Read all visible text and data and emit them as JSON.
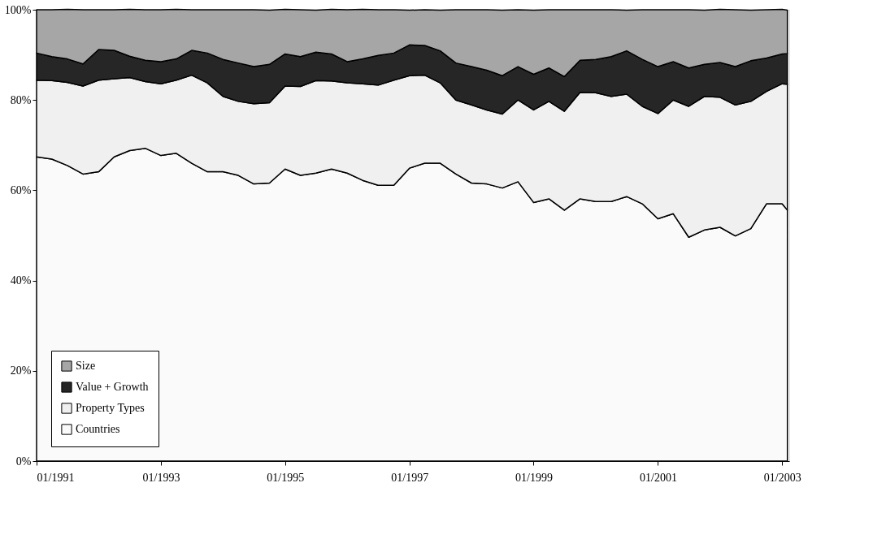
{
  "chart_data": {
    "type": "area",
    "stacked": true,
    "x": [
      "1991-01",
      "1991-04",
      "1991-07",
      "1991-10",
      "1992-01",
      "1992-04",
      "1992-07",
      "1992-10",
      "1993-01",
      "1993-04",
      "1993-07",
      "1993-10",
      "1994-01",
      "1994-04",
      "1994-07",
      "1994-10",
      "1995-01",
      "1995-04",
      "1995-07",
      "1995-10",
      "1996-01",
      "1996-04",
      "1996-07",
      "1996-10",
      "1997-01",
      "1997-04",
      "1997-07",
      "1997-10",
      "1998-01",
      "1998-04",
      "1998-07",
      "1998-10",
      "1999-01",
      "1999-04",
      "1999-07",
      "1999-10",
      "2000-01",
      "2000-04",
      "2000-07",
      "2000-10",
      "2001-01",
      "2001-04",
      "2001-07",
      "2001-10",
      "2002-01",
      "2002-04",
      "2002-07",
      "2002-10",
      "2003-01",
      "2003-02"
    ],
    "series": [
      {
        "name": "Countries",
        "color": "#fafafa",
        "values": [
          67.4,
          66.9,
          65.5,
          63.6,
          64.1,
          67.4,
          68.8,
          69.3,
          67.7,
          68.2,
          66.0,
          64.1,
          64.1,
          63.3,
          61.4,
          61.6,
          64.7,
          63.3,
          63.8,
          64.7,
          63.8,
          62.2,
          61.1,
          61.1,
          64.9,
          66.0,
          66.0,
          63.6,
          61.6,
          61.4,
          60.5,
          61.9,
          57.3,
          58.1,
          55.6,
          58.1,
          57.5,
          57.5,
          58.6,
          57.0,
          53.7,
          54.8,
          49.6,
          51.2,
          51.8,
          49.9,
          51.5,
          57.0,
          57.0,
          55.6
        ]
      },
      {
        "name": "Property Types",
        "color": "#f0f0f0",
        "values": [
          17.0,
          17.4,
          18.4,
          19.5,
          20.3,
          17.3,
          16.2,
          14.8,
          15.9,
          16.2,
          19.5,
          19.7,
          16.7,
          16.4,
          17.8,
          17.8,
          18.4,
          19.7,
          20.5,
          19.5,
          20.0,
          21.4,
          22.2,
          23.3,
          20.5,
          19.5,
          17.8,
          16.4,
          17.3,
          16.4,
          16.4,
          18.1,
          20.5,
          21.6,
          21.9,
          23.6,
          24.1,
          23.3,
          22.7,
          21.6,
          23.3,
          25.2,
          29.0,
          29.6,
          28.8,
          29.0,
          28.2,
          24.9,
          26.6,
          27.9
        ]
      },
      {
        "name": "Value + Growth",
        "color": "#262626",
        "values": [
          6.0,
          5.3,
          5.2,
          4.9,
          6.8,
          6.3,
          4.7,
          4.7,
          4.9,
          4.7,
          5.5,
          6.6,
          8.2,
          8.5,
          8.2,
          8.5,
          7.1,
          6.6,
          6.3,
          6.0,
          4.7,
          5.5,
          6.6,
          6.0,
          6.8,
          6.6,
          7.1,
          8.2,
          8.5,
          8.8,
          8.5,
          7.4,
          7.9,
          7.4,
          7.7,
          7.1,
          7.4,
          8.8,
          9.6,
          10.4,
          10.4,
          8.5,
          8.5,
          7.1,
          7.7,
          8.5,
          9.0,
          7.4,
          6.6,
          6.8
        ]
      },
      {
        "name": "Size",
        "color": "#a6a6a6",
        "values": [
          9.6,
          10.4,
          11.0,
          12.0,
          8.8,
          9.0,
          10.4,
          11.2,
          11.5,
          11.0,
          9.0,
          9.6,
          11.0,
          11.8,
          12.6,
          12.0,
          9.9,
          10.4,
          9.3,
          9.9,
          11.5,
          11.0,
          10.1,
          9.6,
          7.7,
          7.9,
          9.0,
          11.8,
          12.6,
          13.4,
          14.5,
          12.6,
          14.2,
          12.9,
          14.8,
          11.2,
          11.0,
          10.4,
          9.0,
          11.0,
          12.6,
          11.5,
          12.9,
          12.0,
          11.8,
          12.6,
          11.2,
          10.7,
          9.9,
          9.6
        ]
      }
    ],
    "xlim": [
      "1991-01",
      "2003-02-12"
    ],
    "xticks": [
      {
        "value": "1991-01",
        "label": "01/1991"
      },
      {
        "value": "1993-01",
        "label": "01/1993"
      },
      {
        "value": "1995-01",
        "label": "01/1995"
      },
      {
        "value": "1997-01",
        "label": "01/1997"
      },
      {
        "value": "1999-01",
        "label": "01/1999"
      },
      {
        "value": "2001-01",
        "label": "01/2001"
      },
      {
        "value": "2003-01",
        "label": "01/2003"
      }
    ],
    "ylim": [
      0,
      100
    ],
    "yticks": [
      {
        "value": 0,
        "label": "0%"
      },
      {
        "value": 20,
        "label": "20%"
      },
      {
        "value": 40,
        "label": "40%"
      },
      {
        "value": 60,
        "label": "60%"
      },
      {
        "value": 80,
        "label": "80%"
      },
      {
        "value": 100,
        "label": "100%"
      }
    ],
    "grid": false,
    "legend": "bottom left"
  }
}
